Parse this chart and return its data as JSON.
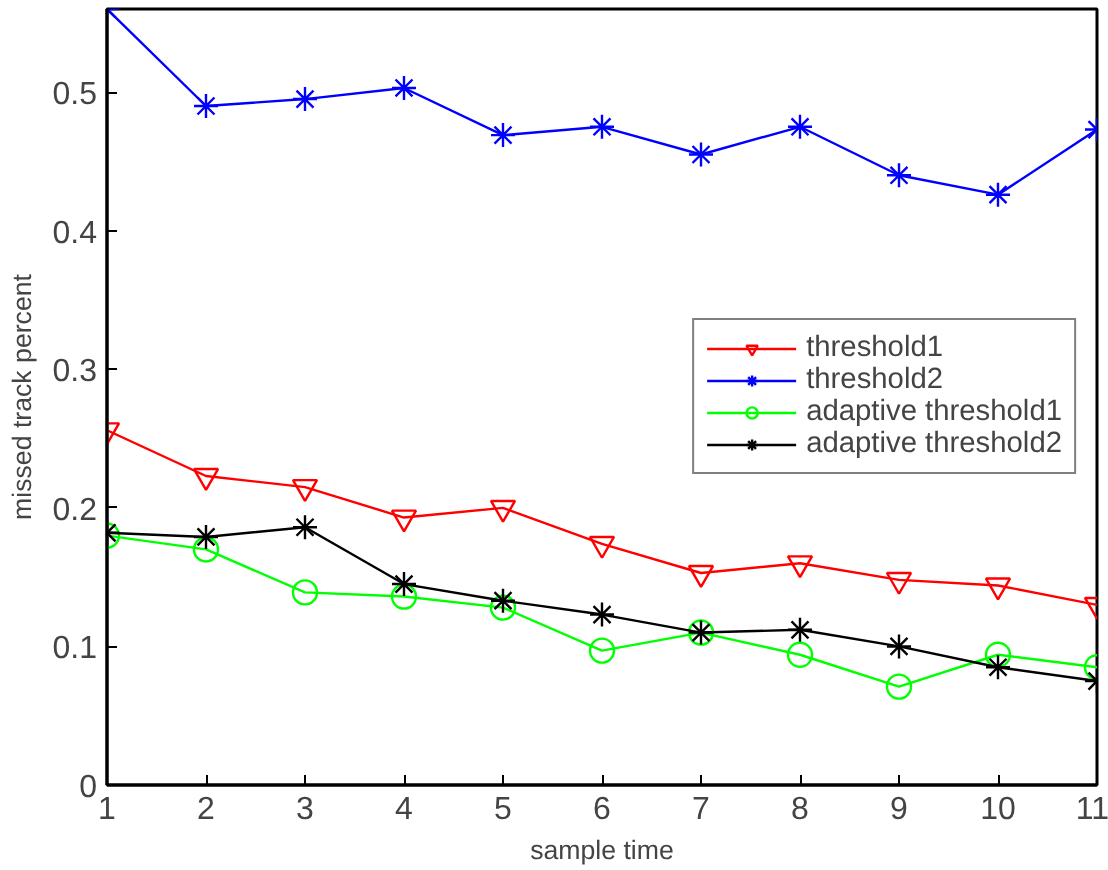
{
  "chart_data": {
    "type": "line",
    "xlabel": "sample time",
    "ylabel": "missed track percent",
    "x": [
      1,
      2,
      3,
      4,
      5,
      6,
      7,
      8,
      9,
      10,
      11
    ],
    "xlim": [
      1,
      11
    ],
    "xticks": [
      1,
      2,
      3,
      4,
      5,
      6,
      7,
      8,
      9,
      10,
      11
    ],
    "ylim": [
      0,
      0.56
    ],
    "yticks": [
      0,
      0.1,
      0.2,
      0.3,
      0.4,
      0.5
    ],
    "grid": false,
    "legend": "right",
    "series": [
      {
        "name": "threshold1",
        "color": "#ff0000",
        "marker": "triangle",
        "values": [
          0.256,
          0.223,
          0.215,
          0.193,
          0.2,
          0.174,
          0.153,
          0.16,
          0.148,
          0.144,
          0.13
        ]
      },
      {
        "name": "threshold2",
        "color": "#0000ff",
        "marker": "cross",
        "values": [
          0.56,
          0.49,
          0.495,
          0.503,
          0.469,
          0.475,
          0.455,
          0.475,
          0.44,
          0.426,
          0.473
        ]
      },
      {
        "name": "adaptive threshold1",
        "color": "#00ff00",
        "marker": "circle",
        "values": [
          0.18,
          0.17,
          0.139,
          0.136,
          0.128,
          0.097,
          0.11,
          0.094,
          0.071,
          0.094,
          0.085
        ]
      },
      {
        "name": "adaptive threshold2",
        "color": "#000000",
        "marker": "cross",
        "values": [
          0.182,
          0.179,
          0.186,
          0.145,
          0.133,
          0.123,
          0.11,
          0.112,
          0.1,
          0.085,
          0.075
        ]
      }
    ]
  }
}
